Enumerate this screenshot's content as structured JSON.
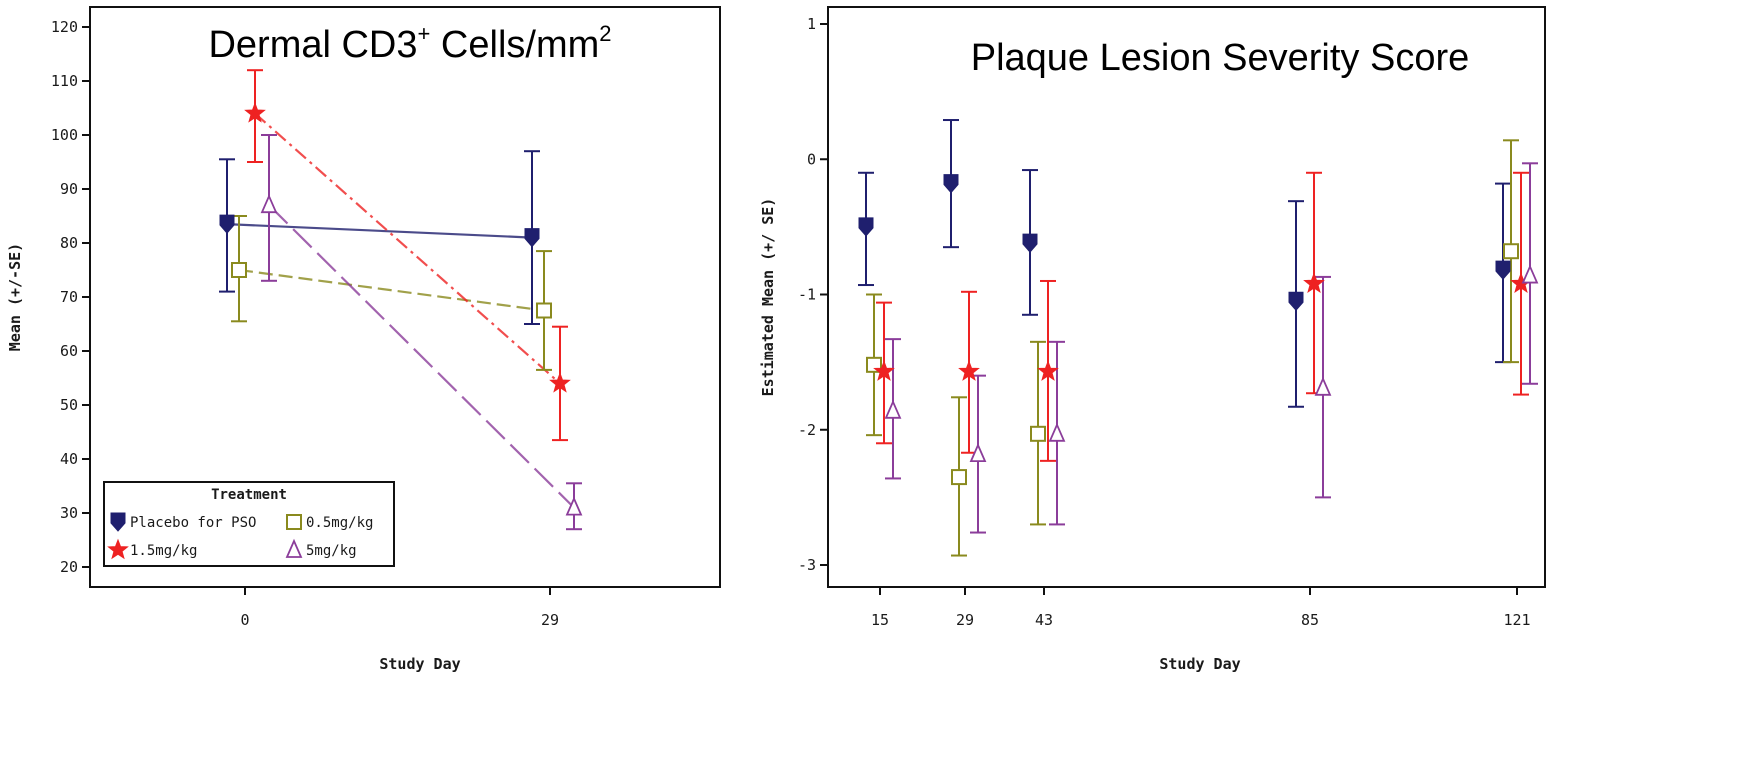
{
  "colors": {
    "placebo": "#1f1f6e",
    "low": "#8a8a1e",
    "high": "#ee2222",
    "mid": "#8b3d9a"
  },
  "chart_data": [
    {
      "type": "line",
      "title_main": "Dermal CD3",
      "title_sup1": "+",
      "title_mid": " Cells/mm",
      "title_sup2": "2",
      "xlabel": "Study Day",
      "ylabel": "Mean (+/-SE)",
      "ylim": [
        20,
        120
      ],
      "yticks": [
        "20",
        "30",
        "40",
        "50",
        "60",
        "70",
        "80",
        "90",
        "100",
        "110",
        "120"
      ],
      "x": [
        "0",
        "29"
      ],
      "legend": {
        "title": "Treatment",
        "position": "bottom-left",
        "entries": [
          "Placebo for PSO",
          "0.5mg/kg",
          "1.5mg/kg",
          "5mg/kg"
        ]
      },
      "series": [
        {
          "name": "Placebo for PSO",
          "color_key": "placebo",
          "marker": "heart",
          "line": "solid",
          "values": [
            83.5,
            81
          ],
          "lower": [
            71,
            65
          ],
          "upper": [
            95.5,
            97
          ]
        },
        {
          "name": "0.5mg/kg",
          "color_key": "low",
          "marker": "square",
          "line": "dash",
          "values": [
            75,
            67.5
          ],
          "lower": [
            65.5,
            56.5
          ],
          "upper": [
            85,
            78.5
          ]
        },
        {
          "name": "1.5mg/kg",
          "color_key": "high",
          "marker": "star",
          "line": "dashdot",
          "values": [
            104,
            54
          ],
          "lower": [
            95,
            43.5
          ],
          "upper": [
            112,
            64.5
          ]
        },
        {
          "name": "5mg/kg",
          "color_key": "mid",
          "marker": "triangle",
          "line": "longdash",
          "values": [
            87,
            31
          ],
          "lower": [
            73,
            27
          ],
          "upper": [
            100,
            35.5
          ]
        }
      ]
    },
    {
      "type": "scatter",
      "title": "Plaque Lesion Severity Score",
      "xlabel": "Study Day",
      "ylabel": "Estimated Mean (+/ SE)",
      "ylim": [
        -3,
        1
      ],
      "yticks": [
        "-3",
        "-2",
        "-1",
        "0",
        "1"
      ],
      "x": [
        "15",
        "29",
        "43",
        "85",
        "121"
      ],
      "series": [
        {
          "name": "Placebo for PSO",
          "color_key": "placebo",
          "marker": "heart",
          "values": [
            -0.5,
            -0.18,
            -0.62,
            -1.05,
            -0.82
          ],
          "lower": [
            -0.93,
            -0.65,
            -1.15,
            -1.83,
            -1.5
          ],
          "upper": [
            -0.1,
            0.29,
            -0.08,
            -0.31,
            -0.18
          ]
        },
        {
          "name": "0.5mg/kg",
          "color_key": "low",
          "marker": "square",
          "values": [
            -1.52,
            -2.35,
            -2.03,
            null,
            -0.68
          ],
          "lower": [
            -2.04,
            -2.93,
            -2.7,
            null,
            -1.5
          ],
          "upper": [
            -1.0,
            -1.76,
            -1.35,
            null,
            0.14
          ]
        },
        {
          "name": "1.5mg/kg",
          "color_key": "high",
          "marker": "star",
          "values": [
            -1.57,
            -1.57,
            -1.57,
            -0.92,
            -0.92
          ],
          "lower": [
            -2.1,
            -2.17,
            -2.23,
            -1.73,
            -1.74
          ],
          "upper": [
            -1.06,
            -0.98,
            -0.9,
            -0.1,
            -0.1
          ]
        },
        {
          "name": "5mg/kg",
          "color_key": "mid",
          "marker": "triangle",
          "values": [
            -1.86,
            -2.18,
            -2.03,
            -1.69,
            -0.86
          ],
          "lower": [
            -2.36,
            -2.76,
            -2.7,
            -2.5,
            -1.66
          ],
          "upper": [
            -1.33,
            -1.6,
            -1.35,
            -0.87,
            -0.03
          ]
        }
      ]
    }
  ]
}
